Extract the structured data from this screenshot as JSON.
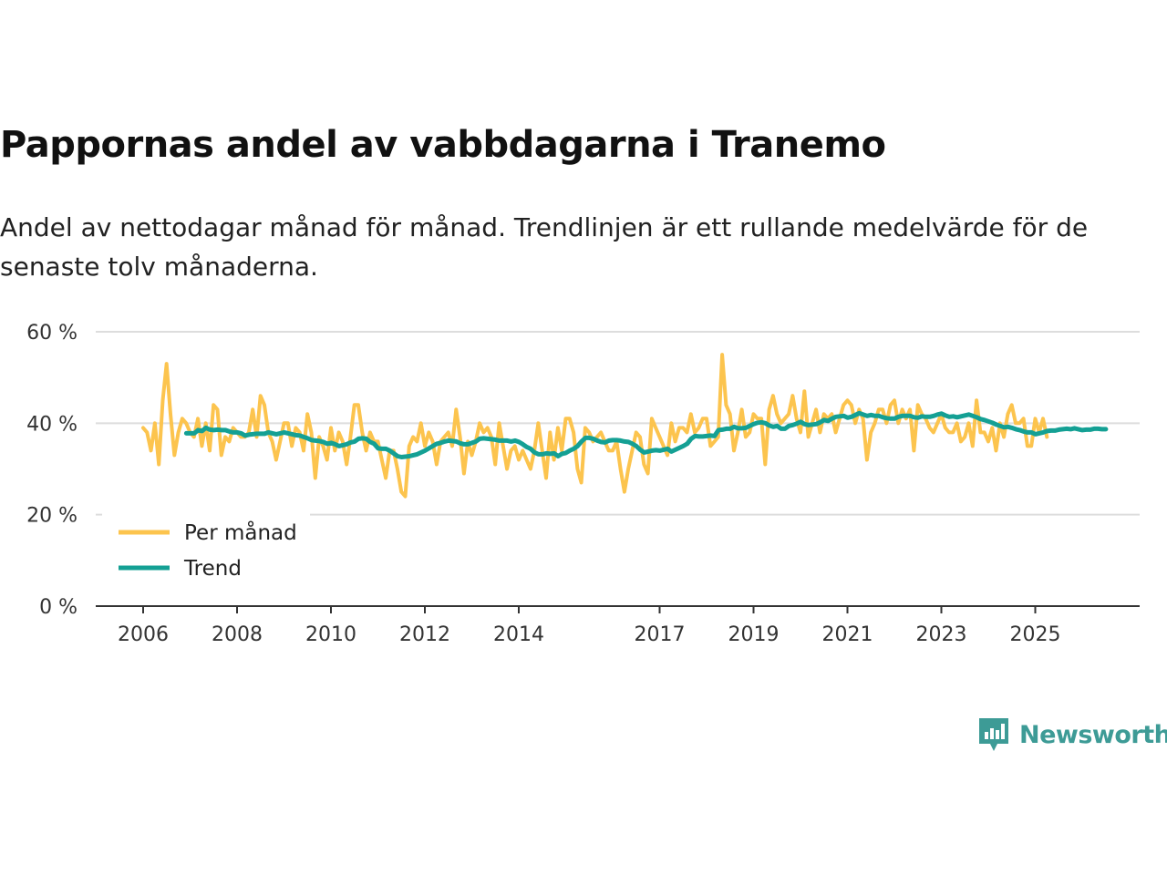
{
  "title": "Pappornas andel av vabbdagarna i Tranemo",
  "subtitle": "Andel av nettodagar månad för månad. Trendlinjen är ett rullande medelvärde för de senaste tolv månaderna.",
  "brand": {
    "name": "Newsworthy",
    "color": "#3d9b96"
  },
  "colors": {
    "monthly": "#fcc44e",
    "trend": "#14a094",
    "grid": "#dddddd",
    "axis": "#333333"
  },
  "chart_data": {
    "type": "line",
    "title": "Pappornas andel av vabbdagarna i Tranemo",
    "xlabel": "",
    "ylabel": "",
    "ylim": [
      0,
      60
    ],
    "yticks": [
      0,
      20,
      40,
      60
    ],
    "ytick_labels": [
      "0 %",
      "20 %",
      "40 %",
      "60 %"
    ],
    "xlim": [
      2005.95,
      2027.2
    ],
    "xticks": [
      2006,
      2008,
      2010,
      2012,
      2014,
      2017,
      2019,
      2021,
      2023,
      2025
    ],
    "xtick_labels": [
      "2006",
      "2008",
      "2010",
      "2012",
      "2014",
      "2017",
      "2019",
      "2021",
      "2023",
      "2025"
    ],
    "legend_position": "bottom-left",
    "series": [
      {
        "name": "Per månad",
        "start": 2006.0,
        "step": 0.08333,
        "values": [
          39,
          38,
          34,
          40,
          31,
          45,
          53,
          42,
          33,
          38,
          41,
          40,
          38,
          37,
          41,
          35,
          40,
          34,
          44,
          43,
          33,
          37,
          36,
          39,
          38,
          37,
          37,
          38,
          43,
          37,
          46,
          44,
          38,
          36,
          32,
          36,
          40,
          40,
          35,
          39,
          38,
          34,
          42,
          38,
          28,
          37,
          35,
          32,
          39,
          34,
          38,
          36,
          31,
          37,
          44,
          44,
          38,
          34,
          38,
          36,
          36,
          32,
          28,
          34,
          34,
          30,
          25,
          24,
          35,
          37,
          36,
          40,
          35,
          38,
          36,
          31,
          36,
          37,
          38,
          35,
          43,
          37,
          29,
          36,
          33,
          36,
          40,
          38,
          39,
          37,
          31,
          40,
          35,
          30,
          34,
          35,
          32,
          34,
          32,
          30,
          34,
          40,
          34,
          28,
          38,
          32,
          39,
          34,
          41,
          41,
          38,
          30,
          27,
          39,
          38,
          36,
          37,
          38,
          36,
          34,
          34,
          36,
          30,
          25,
          30,
          34,
          38,
          37,
          31,
          29,
          41,
          39,
          37,
          35,
          33,
          40,
          36,
          39,
          39,
          38,
          42,
          38,
          39,
          41,
          41,
          35,
          36,
          37,
          55,
          44,
          42,
          34,
          38,
          43,
          37,
          38,
          42,
          41,
          41,
          31,
          43,
          46,
          42,
          40,
          41,
          42,
          46,
          41,
          38,
          47,
          37,
          40,
          43,
          38,
          42,
          41,
          42,
          38,
          41,
          44,
          45,
          44,
          40,
          43,
          41,
          32,
          38,
          40,
          43,
          43,
          40,
          44,
          45,
          40,
          43,
          41,
          43,
          34,
          44,
          42,
          41,
          39,
          38,
          40,
          42,
          39,
          38,
          38,
          40,
          36,
          37,
          40,
          35,
          45,
          38,
          38,
          36,
          39,
          34,
          40,
          37,
          42,
          44,
          40,
          40,
          41,
          35,
          35,
          41,
          38,
          41,
          37
        ]
      },
      {
        "name": "Trend",
        "start": 2006.92,
        "step": 0.08333,
        "values": [
          37.8,
          37.8,
          37.8,
          38.5,
          38.3,
          39.0,
          38.6,
          38.5,
          38.6,
          38.5,
          38.5,
          38.2,
          38.0,
          38.0,
          37.8,
          37.3,
          37.5,
          37.6,
          37.7,
          37.7,
          37.7,
          38.0,
          37.8,
          37.6,
          37.8,
          38.0,
          37.8,
          37.6,
          37.4,
          37.3,
          37.0,
          36.7,
          36.3,
          36.2,
          36.1,
          35.9,
          35.5,
          35.7,
          35.4,
          35.0,
          35.2,
          35.4,
          35.8,
          36.0,
          36.6,
          36.7,
          36.6,
          35.9,
          35.5,
          34.5,
          34.4,
          34.4,
          34.0,
          33.4,
          32.8,
          32.6,
          32.7,
          32.8,
          33.0,
          33.2,
          33.6,
          34.0,
          34.5,
          35.0,
          35.5,
          35.7,
          36.0,
          36.2,
          36.1,
          36.0,
          35.6,
          35.4,
          35.4,
          35.7,
          36.0,
          36.6,
          36.7,
          36.6,
          36.5,
          36.4,
          36.2,
          36.2,
          36.2,
          36.0,
          36.2,
          35.9,
          35.4,
          34.8,
          34.4,
          33.6,
          33.2,
          33.2,
          33.4,
          33.3,
          33.4,
          32.8,
          33.3,
          33.5,
          34.0,
          34.4,
          35.0,
          36.0,
          36.8,
          36.8,
          36.6,
          36.2,
          35.9,
          35.8,
          36.2,
          36.3,
          36.3,
          36.2,
          36.0,
          35.9,
          35.5,
          35.0,
          34.2,
          33.6,
          33.8,
          34.0,
          34.1,
          34.0,
          34.2,
          34.4,
          33.8,
          34.2,
          34.6,
          35.0,
          35.5,
          36.6,
          37.2,
          37.1,
          37.1,
          37.2,
          37.3,
          37.2,
          38.5,
          38.6,
          38.8,
          38.8,
          39.2,
          38.9,
          38.9,
          39.0,
          39.4,
          39.8,
          40.1,
          40.2,
          40.0,
          39.5,
          39.2,
          39.4,
          38.8,
          38.8,
          39.4,
          39.6,
          39.9,
          40.3,
          39.8,
          39.6,
          39.7,
          39.8,
          40.2,
          40.7,
          40.5,
          41.0,
          41.4,
          41.5,
          41.6,
          41.2,
          41.4,
          41.8,
          42.2,
          41.9,
          41.6,
          41.8,
          41.6,
          41.6,
          41.3,
          41.1,
          41.0,
          41.0,
          41.4,
          41.6,
          41.6,
          41.6,
          41.3,
          41.2,
          41.5,
          41.4,
          41.4,
          41.6,
          41.9,
          42.1,
          41.7,
          41.4,
          41.5,
          41.3,
          41.5,
          41.7,
          41.9,
          41.6,
          41.3,
          40.9,
          40.7,
          40.4,
          40.1,
          39.7,
          39.4,
          39.1,
          39.2,
          39.0,
          38.7,
          38.5,
          38.2,
          38.0,
          38.0,
          37.6,
          37.8,
          38.0,
          38.3,
          38.4,
          38.4,
          38.6,
          38.7,
          38.8,
          38.7,
          38.9,
          38.7,
          38.5,
          38.6,
          38.6,
          38.8,
          38.8,
          38.7,
          38.7
        ]
      }
    ]
  }
}
